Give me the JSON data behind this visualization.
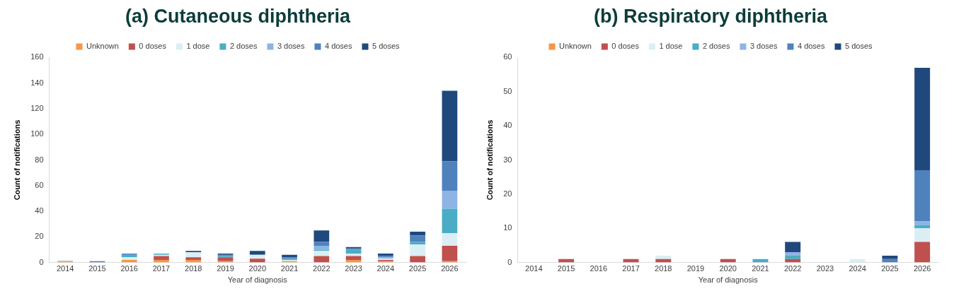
{
  "chart_data": [
    {
      "type": "bar",
      "title": "(a) Cutaneous diphtheria",
      "xlabel": "Year of diagnosis",
      "ylabel": "Count of notifications",
      "categories": [
        "2014",
        "2015",
        "2016",
        "2017",
        "2018",
        "2019",
        "2020",
        "2021",
        "2022",
        "2023",
        "2024",
        "2025",
        "2026"
      ],
      "stacked": true,
      "legend": "top",
      "grid": false,
      "ylim": [
        0,
        160
      ],
      "yticks": [
        0,
        20,
        40,
        60,
        80,
        100,
        120,
        140,
        160
      ],
      "series": [
        {
          "name": "Unknown",
          "color": "#f79646",
          "values": [
            1,
            0,
            2,
            2,
            2,
            1,
            0,
            1,
            0,
            2,
            1,
            0,
            1
          ]
        },
        {
          "name": "0 doses",
          "color": "#c0504d",
          "values": [
            0,
            0,
            0,
            3,
            2,
            3,
            3,
            0,
            5,
            3,
            1,
            5,
            12
          ]
        },
        {
          "name": "1 dose",
          "color": "#dbeef4",
          "values": [
            1,
            0,
            2,
            1,
            4,
            0,
            3,
            1,
            4,
            2,
            1,
            9,
            10
          ]
        },
        {
          "name": "2 doses",
          "color": "#4bacc6",
          "values": [
            0,
            0,
            2,
            1,
            0,
            1,
            0,
            1,
            1,
            3,
            0,
            2,
            19
          ]
        },
        {
          "name": "3 doses",
          "color": "#8eb4e3",
          "values": [
            0,
            0,
            0,
            0,
            0,
            0,
            0,
            0,
            3,
            0,
            1,
            0,
            14
          ]
        },
        {
          "name": "4 doses",
          "color": "#4f81bd",
          "values": [
            0,
            1,
            1,
            0,
            0,
            1,
            0,
            1,
            3,
            1,
            1,
            5,
            23
          ]
        },
        {
          "name": "5 doses",
          "color": "#1f497d",
          "values": [
            0,
            0,
            0,
            0,
            1,
            1,
            3,
            2,
            9,
            1,
            2,
            3,
            55
          ]
        }
      ]
    },
    {
      "type": "bar",
      "title": "(b) Respiratory diphtheria",
      "xlabel": "Year of diagnosis",
      "ylabel": "Count of notifications",
      "categories": [
        "2014",
        "2015",
        "2016",
        "2017",
        "2018",
        "2019",
        "2020",
        "2021",
        "2022",
        "2023",
        "2024",
        "2025",
        "2026"
      ],
      "stacked": true,
      "legend": "top",
      "grid": false,
      "ylim": [
        0,
        60
      ],
      "yticks": [
        0,
        10,
        20,
        30,
        40,
        50,
        60
      ],
      "series": [
        {
          "name": "Unknown",
          "color": "#f79646",
          "values": [
            0,
            0,
            0,
            0,
            0,
            0,
            0,
            0,
            0,
            0,
            0,
            0,
            0
          ]
        },
        {
          "name": "0 doses",
          "color": "#c0504d",
          "values": [
            0,
            1,
            0,
            1,
            1,
            0,
            1,
            0,
            1,
            0,
            0,
            0,
            6
          ]
        },
        {
          "name": "1 dose",
          "color": "#dbeef4",
          "values": [
            0,
            0,
            0,
            0,
            1,
            0,
            0,
            0,
            0,
            0,
            1,
            0,
            4
          ]
        },
        {
          "name": "2 doses",
          "color": "#4bacc6",
          "values": [
            0,
            0,
            0,
            0,
            0,
            0,
            0,
            1,
            1,
            0,
            0,
            0,
            1
          ]
        },
        {
          "name": "3 doses",
          "color": "#8eb4e3",
          "values": [
            0,
            0,
            0,
            0,
            0,
            0,
            0,
            0,
            1,
            0,
            0,
            0,
            1
          ]
        },
        {
          "name": "4 doses",
          "color": "#4f81bd",
          "values": [
            0,
            0,
            0,
            0,
            0,
            0,
            0,
            0,
            0,
            0,
            0,
            1,
            15
          ]
        },
        {
          "name": "5 doses",
          "color": "#1f497d",
          "values": [
            0,
            0,
            0,
            0,
            0,
            0,
            0,
            0,
            3,
            0,
            0,
            1,
            30
          ]
        }
      ]
    }
  ]
}
